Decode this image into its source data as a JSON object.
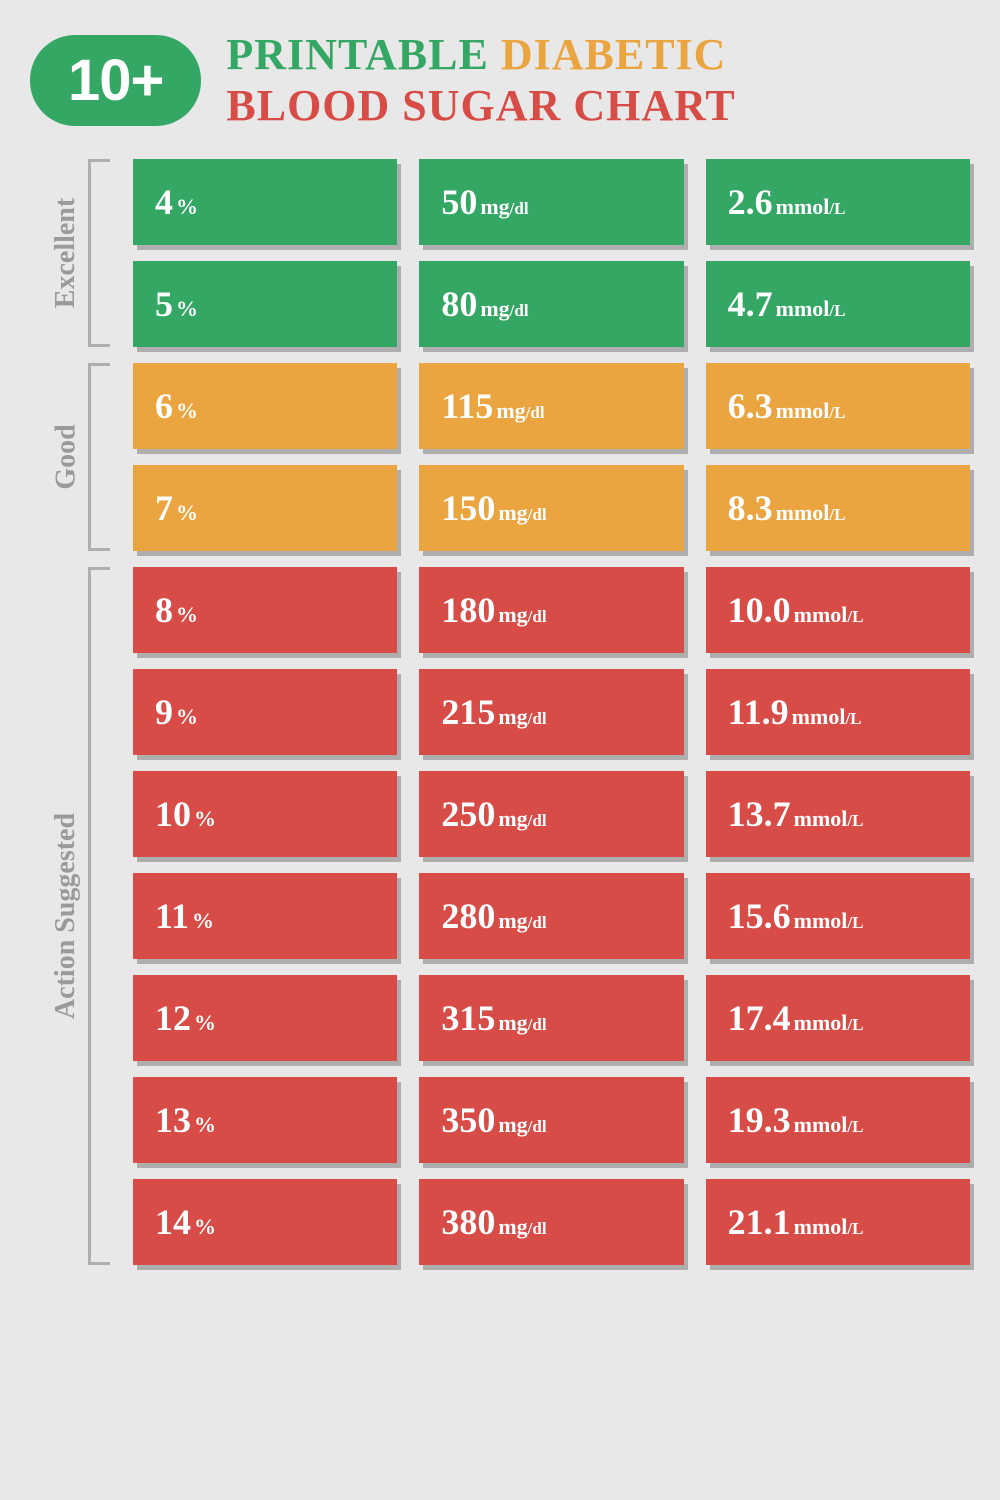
{
  "badge": "10+",
  "title": {
    "line1": {
      "word1": "PRINTABLE",
      "word2": "DIABETIC"
    },
    "line2": "BLOOD SUGAR CHART"
  },
  "colors": {
    "excellent": "#34a764",
    "good": "#eba540",
    "action": "#d84c48",
    "background": "#e8e8e8",
    "bracket": "#aeaeae",
    "bracket_label": "#9a9a9a",
    "cell_text": "#ffffff"
  },
  "units": {
    "percent": "%",
    "mgdl": {
      "main": "mg",
      "sub": "/dl"
    },
    "mmol": {
      "main": "mmol",
      "sub": "/L"
    }
  },
  "sections": [
    {
      "label": "Excellent",
      "color_key": "excellent",
      "rows": [
        {
          "pct": "4",
          "mgdl": "50",
          "mmol": "2.6"
        },
        {
          "pct": "5",
          "mgdl": "80",
          "mmol": "4.7"
        }
      ]
    },
    {
      "label": "Good",
      "color_key": "good",
      "rows": [
        {
          "pct": "6",
          "mgdl": "115",
          "mmol": "6.3"
        },
        {
          "pct": "7",
          "mgdl": "150",
          "mmol": "8.3"
        }
      ]
    },
    {
      "label": "Action Suggested",
      "color_key": "action",
      "rows": [
        {
          "pct": "8",
          "mgdl": "180",
          "mmol": "10.0"
        },
        {
          "pct": "9",
          "mgdl": "215",
          "mmol": "11.9"
        },
        {
          "pct": "10",
          "mgdl": "250",
          "mmol": "13.7"
        },
        {
          "pct": "11",
          "mgdl": "280",
          "mmol": "15.6"
        },
        {
          "pct": "12",
          "mgdl": "315",
          "mmol": "17.4"
        },
        {
          "pct": "13",
          "mgdl": "350",
          "mmol": "19.3"
        },
        {
          "pct": "14",
          "mgdl": "380",
          "mmol": "21.1"
        }
      ]
    }
  ]
}
